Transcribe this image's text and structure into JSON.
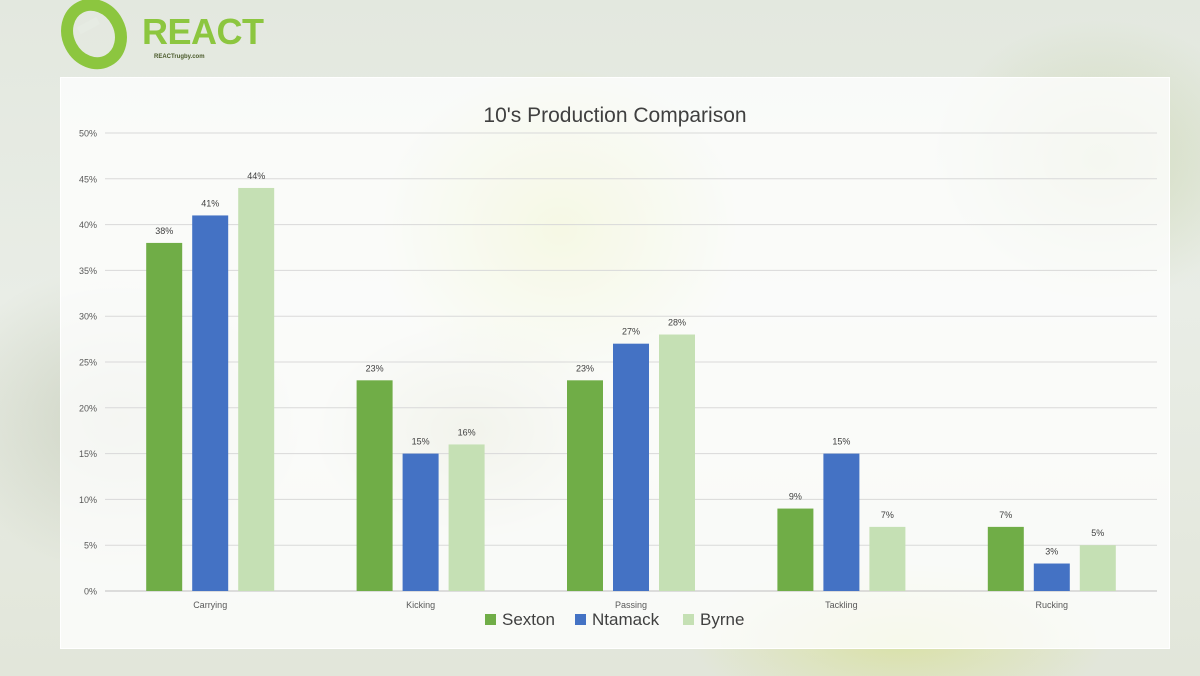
{
  "brand": {
    "name": "REACT",
    "url": "REACTrugby.com",
    "color": "#8cc63f"
  },
  "chart_data": {
    "type": "bar",
    "title": "10's Production Comparison",
    "xlabel": "",
    "ylabel": "",
    "categories": [
      "Carrying",
      "Kicking",
      "Passing",
      "Tackling",
      "Rucking"
    ],
    "series": [
      {
        "name": "Sexton",
        "color": "#70ad47",
        "values": [
          38,
          23,
          23,
          9,
          7
        ],
        "labels": [
          "38%",
          "23%",
          "23%",
          "9%",
          "7%"
        ]
      },
      {
        "name": "Ntamack",
        "color": "#4472c4",
        "values": [
          41,
          15,
          27,
          15,
          3
        ],
        "labels": [
          "41%",
          "15%",
          "27%",
          "15%",
          "3%"
        ]
      },
      {
        "name": "Byrne",
        "color": "#c5e0b4",
        "values": [
          44,
          16,
          28,
          7,
          5
        ],
        "labels": [
          "44%",
          "16%",
          "28%",
          "7%",
          "5%"
        ]
      }
    ],
    "ylim": [
      0,
      50
    ],
    "yticks": [
      "0%",
      "5%",
      "10%",
      "15%",
      "20%",
      "25%",
      "30%",
      "35%",
      "40%",
      "45%",
      "50%"
    ],
    "grid": true,
    "legend": "bottom"
  }
}
